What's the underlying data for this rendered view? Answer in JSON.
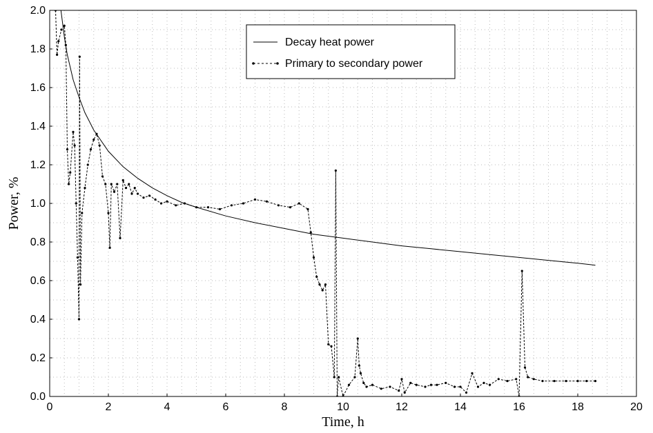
{
  "chart_data": {
    "type": "line",
    "xlabel": "Time, h",
    "ylabel": "Power, %",
    "xlim": [
      0,
      20
    ],
    "ylim": [
      0,
      2.0
    ],
    "xticks": [
      "0",
      "2",
      "4",
      "6",
      "8",
      "10",
      "12",
      "14",
      "16",
      "18",
      "20"
    ],
    "yticks": [
      "0.0",
      "0.2",
      "0.4",
      "0.6",
      "0.8",
      "1.0",
      "1.2",
      "1.4",
      "1.6",
      "1.8",
      "2.0"
    ],
    "grid": true,
    "legend_position": "top-center",
    "series": [
      {
        "name": "Decay heat power",
        "style": "solid",
        "color": "#000000",
        "x": [
          0.2,
          0.3,
          0.4,
          0.5,
          0.6,
          0.8,
          1.0,
          1.2,
          1.5,
          2.0,
          2.5,
          3.0,
          3.5,
          4.0,
          4.5,
          5.0,
          6.0,
          7.0,
          8.0,
          9.0,
          10.0,
          11.0,
          12.0,
          13.0,
          14.0,
          15.0,
          16.0,
          17.0,
          18.0,
          18.6
        ],
        "values": [
          2.0,
          2.1,
          1.98,
          1.86,
          1.77,
          1.64,
          1.55,
          1.47,
          1.38,
          1.27,
          1.19,
          1.13,
          1.08,
          1.04,
          1.005,
          0.98,
          0.935,
          0.9,
          0.87,
          0.84,
          0.82,
          0.8,
          0.78,
          0.765,
          0.75,
          0.735,
          0.72,
          0.705,
          0.69,
          0.68
        ]
      },
      {
        "name": "Primary to secondary power",
        "style": "dashed",
        "color": "#000000",
        "x": [
          0.2,
          0.25,
          0.3,
          0.4,
          0.5,
          0.55,
          0.6,
          0.65,
          0.7,
          0.8,
          0.85,
          0.9,
          0.95,
          1.0,
          1.02,
          1.05,
          1.1,
          1.2,
          1.3,
          1.4,
          1.5,
          1.6,
          1.7,
          1.8,
          1.9,
          2.0,
          2.05,
          2.1,
          2.2,
          2.3,
          2.4,
          2.5,
          2.6,
          2.7,
          2.8,
          2.9,
          3.0,
          3.2,
          3.4,
          3.6,
          3.8,
          4.0,
          4.3,
          4.6,
          5.0,
          5.4,
          5.8,
          6.2,
          6.6,
          7.0,
          7.4,
          7.8,
          8.2,
          8.5,
          8.8,
          8.9,
          9.0,
          9.1,
          9.2,
          9.3,
          9.4,
          9.5,
          9.6,
          9.7,
          9.75,
          9.8,
          9.85,
          10.0,
          10.2,
          10.4,
          10.5,
          10.55,
          10.6,
          10.7,
          10.8,
          11.0,
          11.3,
          11.6,
          11.9,
          12.0,
          12.1,
          12.3,
          12.5,
          12.8,
          13.0,
          13.2,
          13.5,
          13.8,
          14.0,
          14.2,
          14.4,
          14.6,
          14.8,
          15.0,
          15.3,
          15.6,
          15.9,
          16.0,
          16.1,
          16.2,
          16.3,
          16.5,
          16.8,
          17.2,
          17.6,
          18.0,
          18.3,
          18.6
        ],
        "values": [
          2.0,
          1.77,
          1.84,
          1.9,
          1.92,
          1.82,
          1.28,
          1.1,
          1.16,
          1.37,
          1.3,
          1.0,
          0.72,
          0.4,
          1.76,
          0.58,
          0.95,
          1.08,
          1.2,
          1.28,
          1.33,
          1.36,
          1.3,
          1.14,
          1.1,
          0.95,
          0.77,
          1.1,
          1.06,
          1.1,
          0.82,
          1.12,
          1.08,
          1.1,
          1.05,
          1.08,
          1.05,
          1.03,
          1.04,
          1.02,
          1.0,
          1.01,
          0.99,
          1.0,
          0.98,
          0.98,
          0.97,
          0.99,
          1.0,
          1.02,
          1.01,
          0.99,
          0.98,
          1.0,
          0.97,
          0.85,
          0.72,
          0.62,
          0.58,
          0.55,
          0.58,
          0.27,
          0.26,
          0.1,
          1.17,
          0.0,
          0.1,
          0.0,
          0.06,
          0.1,
          0.3,
          0.16,
          0.12,
          0.07,
          0.05,
          0.06,
          0.04,
          0.05,
          0.03,
          0.09,
          0.02,
          0.07,
          0.06,
          0.05,
          0.06,
          0.06,
          0.07,
          0.05,
          0.05,
          0.02,
          0.12,
          0.05,
          0.07,
          0.06,
          0.09,
          0.08,
          0.09,
          0.0,
          0.65,
          0.15,
          0.1,
          0.09,
          0.08,
          0.08,
          0.08,
          0.08,
          0.08,
          0.08
        ]
      }
    ]
  }
}
